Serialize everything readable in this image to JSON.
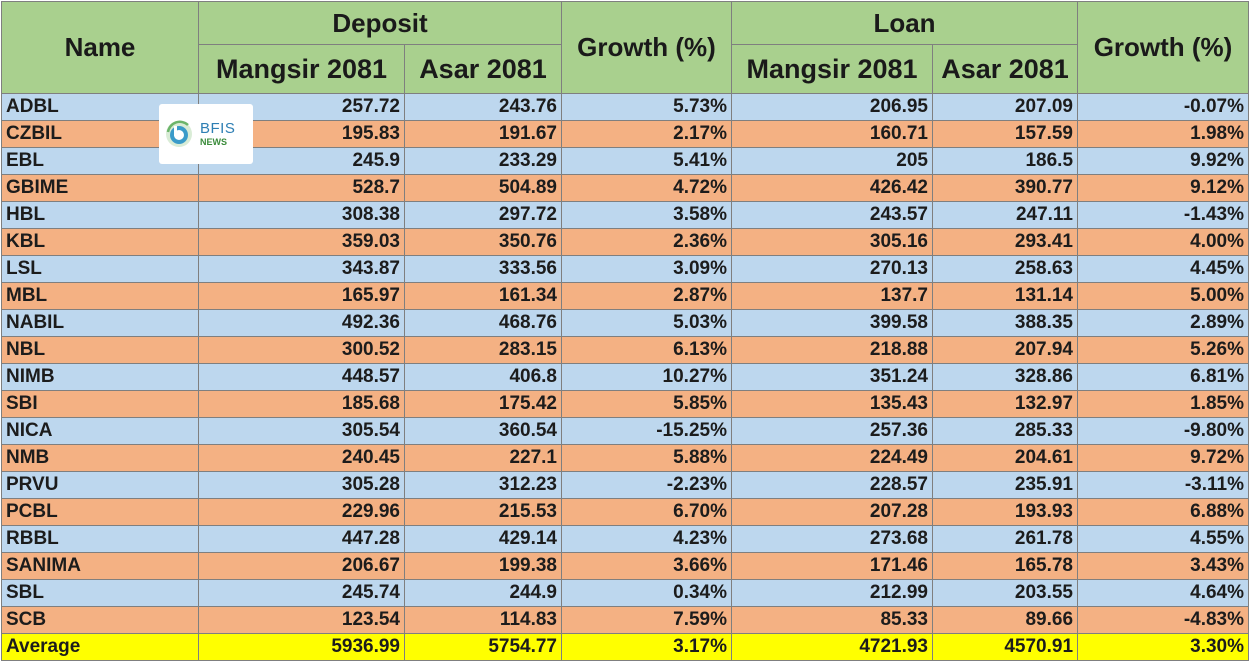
{
  "header": {
    "name": "Name",
    "deposit": "Deposit",
    "loan": "Loan",
    "growth": "Growth (%)",
    "period1": "Mangsir 2081",
    "period2": "Asar 2081"
  },
  "logo": {
    "brand": "BFIS",
    "sub": "NEWS"
  },
  "rows": [
    {
      "name": "ADBL",
      "d1": "257.72",
      "d2": "243.76",
      "dg": "5.73%",
      "l1": "206.95",
      "l2": "207.09",
      "lg": "-0.07%"
    },
    {
      "name": "CZBIL",
      "d1": "195.83",
      "d2": "191.67",
      "dg": "2.17%",
      "l1": "160.71",
      "l2": "157.59",
      "lg": "1.98%"
    },
    {
      "name": "EBL",
      "d1": "245.9",
      "d2": "233.29",
      "dg": "5.41%",
      "l1": "205",
      "l2": "186.5",
      "lg": "9.92%"
    },
    {
      "name": "GBIME",
      "d1": "528.7",
      "d2": "504.89",
      "dg": "4.72%",
      "l1": "426.42",
      "l2": "390.77",
      "lg": "9.12%"
    },
    {
      "name": "HBL",
      "d1": "308.38",
      "d2": "297.72",
      "dg": "3.58%",
      "l1": "243.57",
      "l2": "247.11",
      "lg": "-1.43%"
    },
    {
      "name": "KBL",
      "d1": "359.03",
      "d2": "350.76",
      "dg": "2.36%",
      "l1": "305.16",
      "l2": "293.41",
      "lg": "4.00%"
    },
    {
      "name": "LSL",
      "d1": "343.87",
      "d2": "333.56",
      "dg": "3.09%",
      "l1": "270.13",
      "l2": "258.63",
      "lg": "4.45%"
    },
    {
      "name": "MBL",
      "d1": "165.97",
      "d2": "161.34",
      "dg": "2.87%",
      "l1": "137.7",
      "l2": "131.14",
      "lg": "5.00%"
    },
    {
      "name": "NABIL",
      "d1": "492.36",
      "d2": "468.76",
      "dg": "5.03%",
      "l1": "399.58",
      "l2": "388.35",
      "lg": "2.89%"
    },
    {
      "name": "NBL",
      "d1": "300.52",
      "d2": "283.15",
      "dg": "6.13%",
      "l1": "218.88",
      "l2": "207.94",
      "lg": "5.26%"
    },
    {
      "name": "NIMB",
      "d1": "448.57",
      "d2": "406.8",
      "dg": "10.27%",
      "l1": "351.24",
      "l2": "328.86",
      "lg": "6.81%"
    },
    {
      "name": "SBI",
      "d1": "185.68",
      "d2": "175.42",
      "dg": "5.85%",
      "l1": "135.43",
      "l2": "132.97",
      "lg": "1.85%"
    },
    {
      "name": "NICA",
      "d1": "305.54",
      "d2": "360.54",
      "dg": "-15.25%",
      "l1": "257.36",
      "l2": "285.33",
      "lg": "-9.80%"
    },
    {
      "name": "NMB",
      "d1": "240.45",
      "d2": "227.1",
      "dg": "5.88%",
      "l1": "224.49",
      "l2": "204.61",
      "lg": "9.72%"
    },
    {
      "name": "PRVU",
      "d1": "305.28",
      "d2": "312.23",
      "dg": "-2.23%",
      "l1": "228.57",
      "l2": "235.91",
      "lg": "-3.11%"
    },
    {
      "name": "PCBL",
      "d1": "229.96",
      "d2": "215.53",
      "dg": "6.70%",
      "l1": "207.28",
      "l2": "193.93",
      "lg": "6.88%"
    },
    {
      "name": "RBBL",
      "d1": "447.28",
      "d2": "429.14",
      "dg": "4.23%",
      "l1": "273.68",
      "l2": "261.78",
      "lg": "4.55%"
    },
    {
      "name": "SANIMA",
      "d1": "206.67",
      "d2": "199.38",
      "dg": "3.66%",
      "l1": "171.46",
      "l2": "165.78",
      "lg": "3.43%"
    },
    {
      "name": "SBL",
      "d1": "245.74",
      "d2": "244.9",
      "dg": "0.34%",
      "l1": "212.99",
      "l2": "203.55",
      "lg": "4.64%"
    },
    {
      "name": "SCB",
      "d1": "123.54",
      "d2": "114.83",
      "dg": "7.59%",
      "l1": "85.33",
      "l2": "89.66",
      "lg": "-4.83%"
    }
  ],
  "average": {
    "name": "Average",
    "d1": "5936.99",
    "d2": "5754.77",
    "dg": "3.17%",
    "l1": "4721.93",
    "l2": "4570.91",
    "lg": "3.30%"
  },
  "colors": {
    "header": "#a9d08e",
    "row_blue": "#bdd7ee",
    "row_orange": "#f4b183",
    "average": "#ffff00"
  }
}
